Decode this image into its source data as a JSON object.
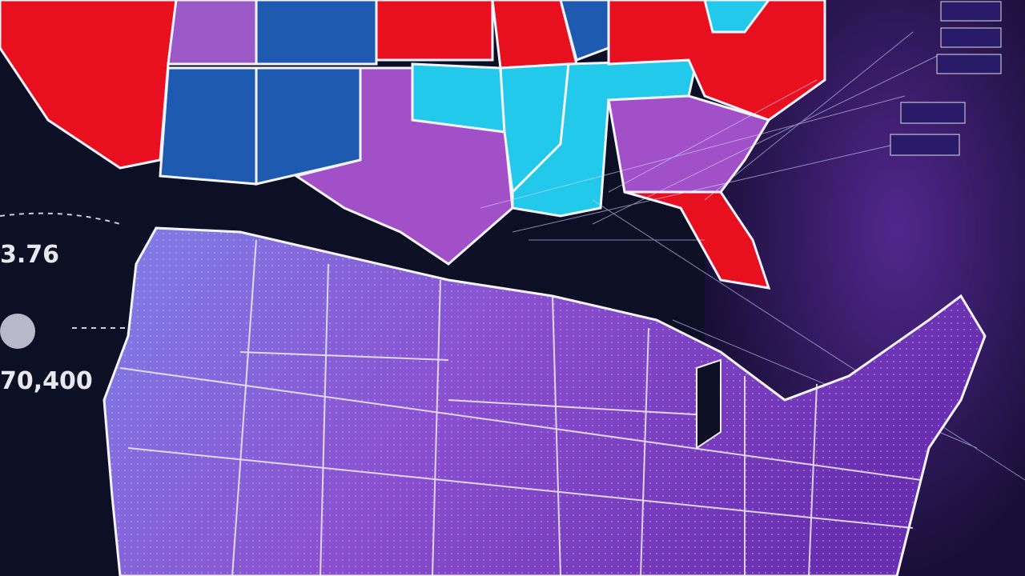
{
  "annotations": {
    "left_top_value": "3.76",
    "left_bottom_value": "70,400"
  }
}
